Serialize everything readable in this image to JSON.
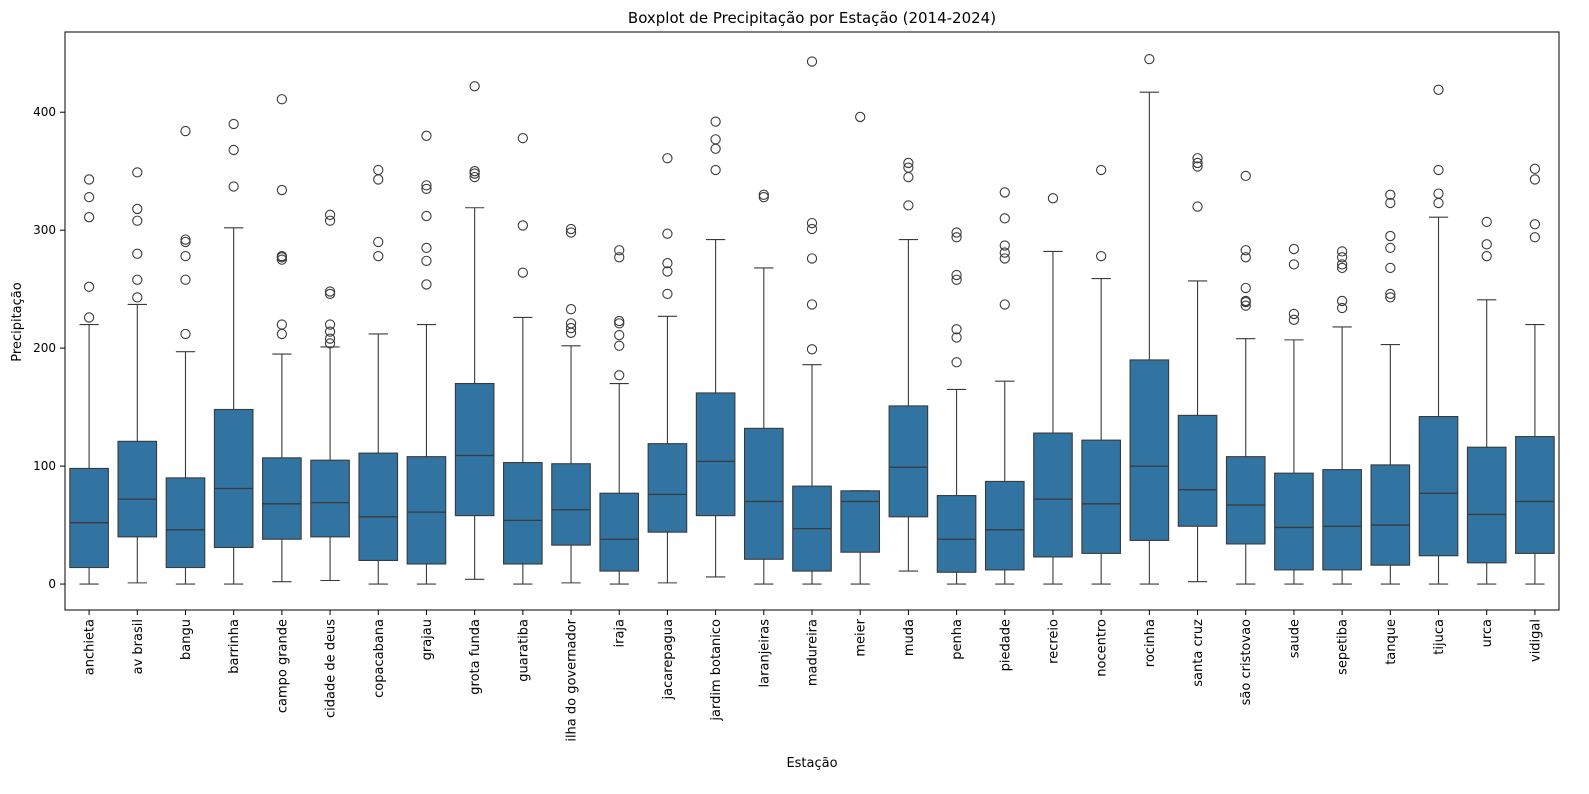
{
  "chart_data": {
    "type": "boxplot",
    "title": "Boxplot de Precipitação por Estação (2014-2024)",
    "xlabel": "Estação",
    "ylabel": "Precipitação",
    "ylim": [
      -22,
      468
    ],
    "yticks": [
      0,
      100,
      200,
      300,
      400
    ],
    "grid": false,
    "box_color": "#3274a1",
    "edge_color": "#3a3a3a",
    "stations": [
      {
        "name": "anchieta",
        "whisker_low": 0,
        "q1": 14,
        "median": 52,
        "q3": 98,
        "whisker_high": 220,
        "outliers": [
          226,
          252,
          311,
          328,
          343
        ]
      },
      {
        "name": "av brasil",
        "whisker_low": 1,
        "q1": 40,
        "median": 72,
        "q3": 121,
        "whisker_high": 237,
        "outliers": [
          243,
          258,
          280,
          308,
          318,
          349
        ]
      },
      {
        "name": "bangu",
        "whisker_low": 0,
        "q1": 14,
        "median": 46,
        "q3": 90,
        "whisker_high": 197,
        "outliers": [
          212,
          258,
          278,
          290,
          292,
          384
        ]
      },
      {
        "name": "barrinha",
        "whisker_low": 0,
        "q1": 31,
        "median": 81,
        "q3": 148,
        "whisker_high": 302,
        "outliers": [
          337,
          368,
          390
        ]
      },
      {
        "name": "campo grande",
        "whisker_low": 2,
        "q1": 38,
        "median": 68,
        "q3": 107,
        "whisker_high": 195,
        "outliers": [
          212,
          220,
          275,
          277,
          278,
          334,
          411
        ]
      },
      {
        "name": "cidade de deus",
        "whisker_low": 3,
        "q1": 40,
        "median": 69,
        "q3": 105,
        "whisker_high": 201,
        "outliers": [
          204,
          208,
          214,
          220,
          246,
          248,
          308,
          313
        ]
      },
      {
        "name": "copacabana",
        "whisker_low": 0,
        "q1": 20,
        "median": 57,
        "q3": 111,
        "whisker_high": 212,
        "outliers": [
          278,
          290,
          343,
          351
        ]
      },
      {
        "name": "grajau",
        "whisker_low": 0,
        "q1": 17,
        "median": 61,
        "q3": 108,
        "whisker_high": 220,
        "outliers": [
          254,
          274,
          285,
          312,
          335,
          338,
          380
        ]
      },
      {
        "name": "grota funda",
        "whisker_low": 4,
        "q1": 58,
        "median": 109,
        "q3": 170,
        "whisker_high": 319,
        "outliers": [
          345,
          348,
          350,
          422
        ]
      },
      {
        "name": "guaratiba",
        "whisker_low": 0,
        "q1": 17,
        "median": 54,
        "q3": 103,
        "whisker_high": 226,
        "outliers": [
          264,
          304,
          378
        ]
      },
      {
        "name": "ilha do governador",
        "whisker_low": 1,
        "q1": 33,
        "median": 63,
        "q3": 102,
        "whisker_high": 202,
        "outliers": [
          213,
          217,
          221,
          233,
          298,
          301
        ]
      },
      {
        "name": "iraja",
        "whisker_low": 0,
        "q1": 11,
        "median": 38,
        "q3": 77,
        "whisker_high": 170,
        "outliers": [
          177,
          202,
          211,
          221,
          223,
          277,
          283
        ]
      },
      {
        "name": "jacarepagua",
        "whisker_low": 1,
        "q1": 44,
        "median": 76,
        "q3": 119,
        "whisker_high": 227,
        "outliers": [
          246,
          265,
          272,
          297,
          361
        ]
      },
      {
        "name": "jardim botanico",
        "whisker_low": 6,
        "q1": 58,
        "median": 104,
        "q3": 162,
        "whisker_high": 292,
        "outliers": [
          351,
          369,
          377,
          392
        ]
      },
      {
        "name": "laranjeiras",
        "whisker_low": 0,
        "q1": 21,
        "median": 70,
        "q3": 132,
        "whisker_high": 268,
        "outliers": [
          328,
          330
        ]
      },
      {
        "name": "madureira",
        "whisker_low": 0,
        "q1": 11,
        "median": 47,
        "q3": 83,
        "whisker_high": 186,
        "outliers": [
          199,
          237,
          276,
          301,
          306,
          443
        ]
      },
      {
        "name": "meier",
        "whisker_low": 0,
        "q1": 27,
        "median": 70,
        "q3": 79,
        "whisker_high": 79,
        "outliers": [
          396
        ]
      },
      {
        "name": "muda",
        "whisker_low": 11,
        "q1": 57,
        "median": 99,
        "q3": 151,
        "whisker_high": 292,
        "outliers": [
          321,
          345,
          353,
          357
        ]
      },
      {
        "name": "penha",
        "whisker_low": 0,
        "q1": 10,
        "median": 38,
        "q3": 75,
        "whisker_high": 165,
        "outliers": [
          188,
          209,
          216,
          258,
          262,
          294,
          298
        ]
      },
      {
        "name": "piedade",
        "whisker_low": 0,
        "q1": 12,
        "median": 46,
        "q3": 87,
        "whisker_high": 172,
        "outliers": [
          237,
          276,
          281,
          287,
          310,
          332
        ]
      },
      {
        "name": "recreio",
        "whisker_low": 0,
        "q1": 23,
        "median": 72,
        "q3": 128,
        "whisker_high": 282,
        "outliers": [
          327
        ]
      },
      {
        "name": "nocentro",
        "whisker_low": 0,
        "q1": 26,
        "median": 68,
        "q3": 122,
        "whisker_high": 259,
        "outliers": [
          278,
          351
        ]
      },
      {
        "name": "rocinha",
        "whisker_low": 0,
        "q1": 37,
        "median": 100,
        "q3": 190,
        "whisker_high": 417,
        "outliers": [
          445
        ]
      },
      {
        "name": "santa cruz",
        "whisker_low": 2,
        "q1": 49,
        "median": 80,
        "q3": 143,
        "whisker_high": 257,
        "outliers": [
          320,
          354,
          357,
          361
        ]
      },
      {
        "name": "são cristovao",
        "whisker_low": 0,
        "q1": 34,
        "median": 67,
        "q3": 108,
        "whisker_high": 208,
        "outliers": [
          236,
          239,
          240,
          251,
          277,
          283,
          346
        ]
      },
      {
        "name": "saude",
        "whisker_low": 0,
        "q1": 12,
        "median": 48,
        "q3": 94,
        "whisker_high": 207,
        "outliers": [
          224,
          229,
          271,
          284
        ]
      },
      {
        "name": "sepetiba",
        "whisker_low": 0,
        "q1": 12,
        "median": 49,
        "q3": 97,
        "whisker_high": 218,
        "outliers": [
          234,
          240,
          268,
          271,
          277,
          282
        ]
      },
      {
        "name": "tanque",
        "whisker_low": 0,
        "q1": 16,
        "median": 50,
        "q3": 101,
        "whisker_high": 203,
        "outliers": [
          243,
          246,
          268,
          285,
          295,
          323,
          330
        ]
      },
      {
        "name": "tijuca",
        "whisker_low": 0,
        "q1": 24,
        "median": 77,
        "q3": 142,
        "whisker_high": 311,
        "outliers": [
          323,
          331,
          351,
          419
        ]
      },
      {
        "name": "urca",
        "whisker_low": 0,
        "q1": 18,
        "median": 59,
        "q3": 116,
        "whisker_high": 241,
        "outliers": [
          278,
          288,
          307
        ]
      },
      {
        "name": "vidigal",
        "whisker_low": 0,
        "q1": 26,
        "median": 70,
        "q3": 125,
        "whisker_high": 220,
        "outliers": [
          294,
          305,
          343,
          352
        ]
      }
    ]
  }
}
